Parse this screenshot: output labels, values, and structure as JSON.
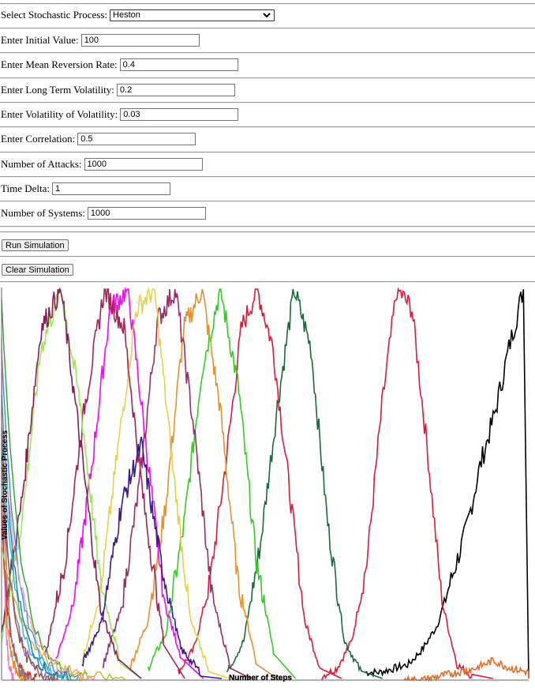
{
  "form": {
    "process": {
      "label": "Select Stochastic Process:",
      "value": "Heston"
    },
    "fields": [
      {
        "id": "initial",
        "label": "Enter Initial Value:",
        "value": "100"
      },
      {
        "id": "mean-reversion",
        "label": "Enter Mean Reversion Rate:",
        "value": "0.4"
      },
      {
        "id": "long-term-vol",
        "label": "Enter Long Term Volatility:",
        "value": "0.2"
      },
      {
        "id": "vol-of-vol",
        "label": "Enter Volatility of Volatility:",
        "value": "0.03"
      },
      {
        "id": "correlation",
        "label": "Enter Correlation:",
        "value": "0.5"
      },
      {
        "id": "attacks",
        "label": "Number of Attacks:",
        "value": "1000"
      },
      {
        "id": "time-delta",
        "label": "Time Delta:",
        "value": "1"
      },
      {
        "id": "systems",
        "label": "Number of Systems:",
        "value": "1000"
      }
    ],
    "run_label": "Run Simulation",
    "clear_label": "Clear Simulation"
  },
  "chart_data": {
    "type": "line",
    "xlabel": "Number of Steps",
    "ylabel": "Values of Stochastic Process",
    "grid": false,
    "series": [
      {
        "color": "#000000",
        "peak_at": 0.99,
        "values": [
          2,
          2,
          3,
          4,
          8,
          14,
          26,
          38,
          55,
          68,
          85,
          100
        ]
      },
      {
        "color": "#e0193a",
        "peak_at": 0.75,
        "values": [
          1,
          3,
          10,
          30,
          70,
          100,
          95,
          60,
          20,
          4,
          1
        ]
      },
      {
        "color": "#e0193a",
        "peak_at": 0.485,
        "values": [
          2,
          8,
          25,
          55,
          90,
          100,
          85,
          50,
          15,
          3
        ]
      },
      {
        "color": "#1a6b38",
        "peak_at": 0.555,
        "values": [
          2,
          10,
          35,
          70,
          100,
          85,
          40,
          10,
          2
        ]
      },
      {
        "color": "#33cc22",
        "peak_at": 0.415,
        "values": [
          3,
          12,
          40,
          80,
          100,
          75,
          30,
          6
        ]
      },
      {
        "color": "#e8902a",
        "peak_at": 0.38,
        "values": [
          3,
          15,
          45,
          90,
          100,
          70,
          25,
          5
        ]
      },
      {
        "color": "#ff00ff",
        "peak_at": 0.24,
        "values": [
          5,
          20,
          55,
          95,
          100,
          60,
          20,
          5
        ]
      },
      {
        "color": "#9b2d6b",
        "peak_at": 0.33,
        "values": [
          4,
          18,
          50,
          92,
          100,
          65,
          22,
          4
        ]
      },
      {
        "color": "#e6d24a",
        "peak_at": 0.29,
        "values": [
          5,
          22,
          60,
          95,
          100,
          55,
          15,
          3
        ]
      },
      {
        "color": "#aa2255",
        "peak_at": 0.195,
        "values": [
          6,
          30,
          70,
          100,
          90,
          45,
          10
        ]
      },
      {
        "color": "#99e85a",
        "peak_at": 0.095,
        "values": [
          10,
          40,
          85,
          100,
          70,
          25,
          5
        ]
      },
      {
        "color": "#8a1a5a",
        "peak_at": 0.105,
        "values": [
          12,
          45,
          90,
          100,
          60,
          18,
          4
        ]
      },
      {
        "color": "#3a1a8c",
        "peak_at": 0.265,
        "values": [
          4,
          15,
          45,
          60,
          30,
          8,
          2
        ]
      },
      {
        "color": "#e0702a",
        "peak_at": 0.935,
        "values": [
          0,
          0,
          1,
          2,
          3,
          5,
          3,
          2
        ]
      }
    ]
  },
  "colors": {
    "separator": "#9a9a9a",
    "button_bg": "#efefef"
  },
  "icons": {
    "select_arrow": "chevron-down-icon"
  }
}
